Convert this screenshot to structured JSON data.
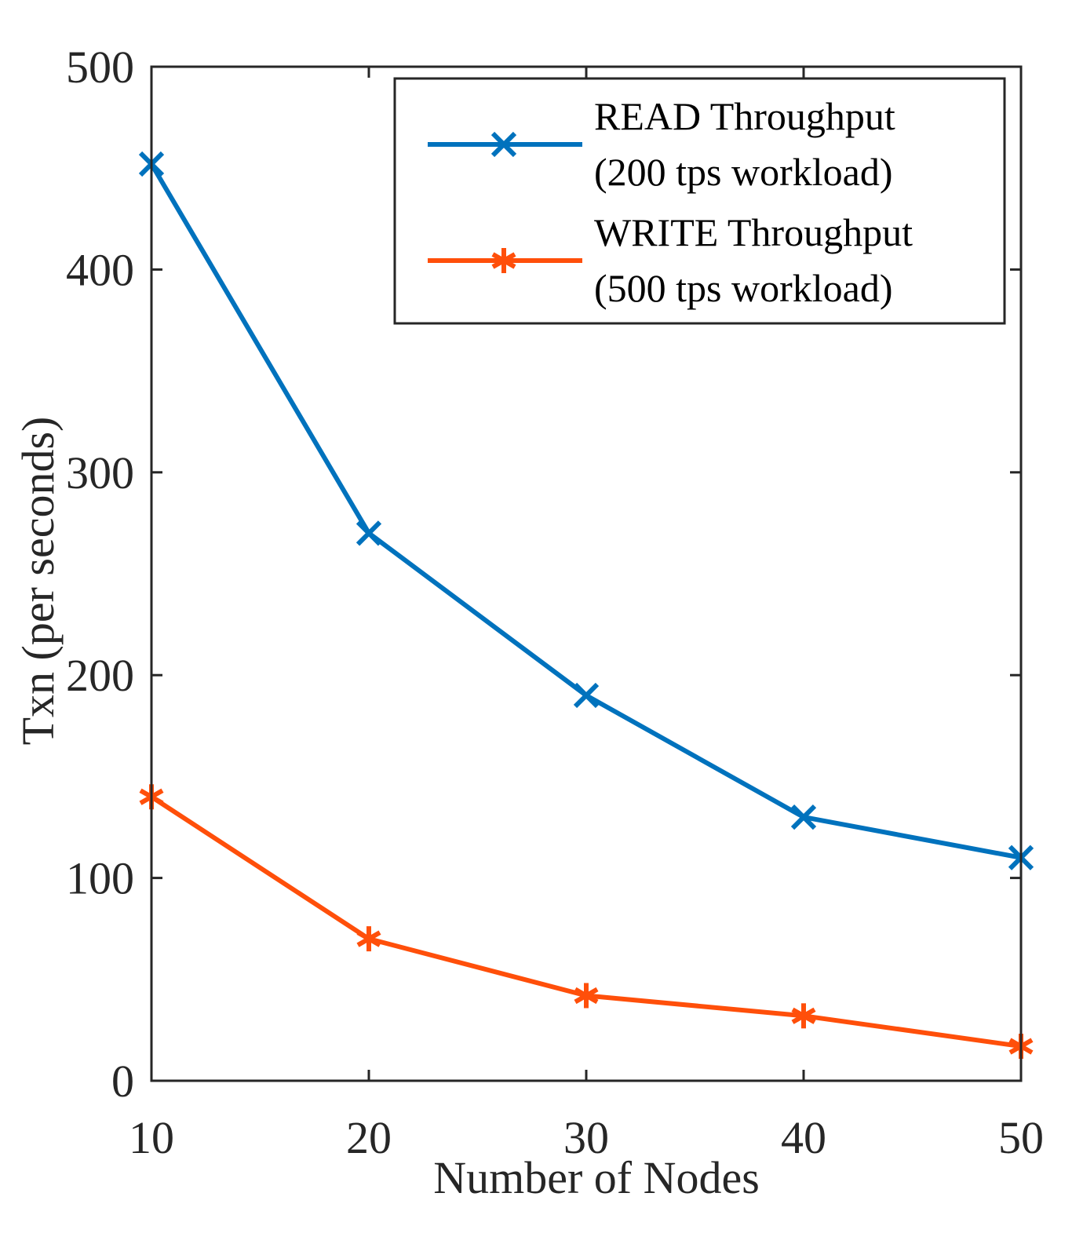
{
  "chart_data": {
    "type": "line",
    "title": "",
    "xlabel": "Number of Nodes",
    "ylabel": "Txn (per seconds)",
    "x": [
      10,
      20,
      30,
      40,
      50
    ],
    "xlim": [
      10,
      50
    ],
    "ylim": [
      0,
      500
    ],
    "xticks": [
      "10",
      "20",
      "30",
      "40",
      "50"
    ],
    "yticks": [
      "0",
      "100",
      "200",
      "300",
      "400",
      "500"
    ],
    "grid": false,
    "legend_position": "top-right",
    "series": [
      {
        "name": "READ Throughput (200 tps workload)",
        "legend_lines": [
          "READ Throughput",
          "(200 tps workload)"
        ],
        "color": "#0072BD",
        "marker": "x",
        "values": [
          452,
          270,
          190,
          130,
          110
        ]
      },
      {
        "name": "WRITE Throughput (500 tps workload)",
        "legend_lines": [
          "WRITE Throughput",
          "(500 tps workload)"
        ],
        "color": "#FF4F0A",
        "marker": "asterisk",
        "values": [
          140,
          70,
          42,
          32,
          17
        ]
      }
    ]
  }
}
